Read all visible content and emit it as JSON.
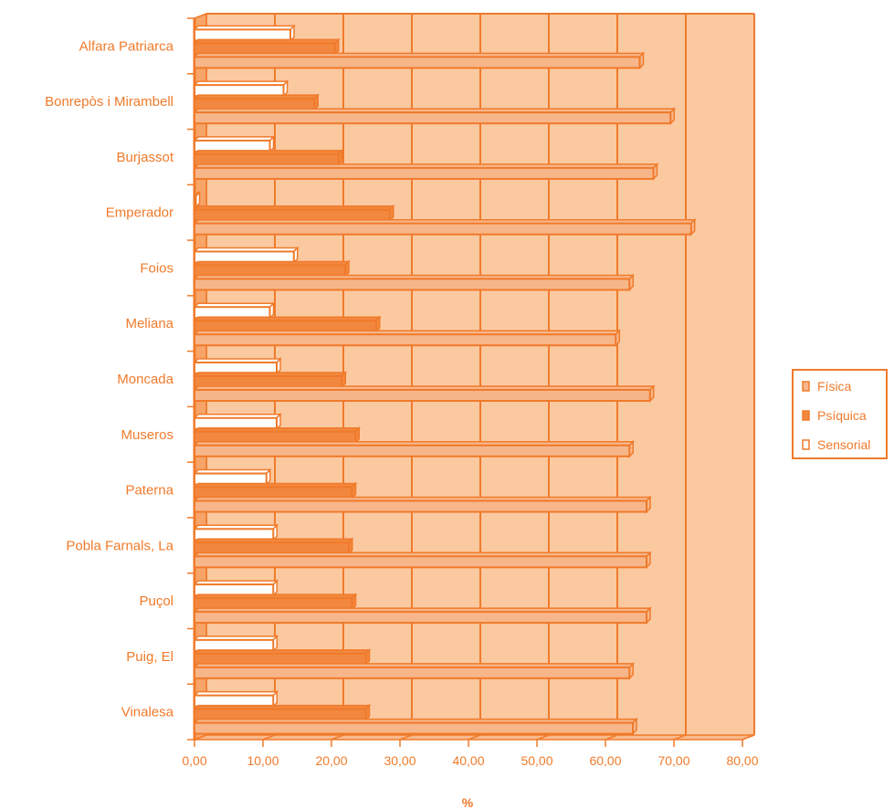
{
  "chart_data": {
    "type": "bar",
    "orientation": "horizontal",
    "title": "",
    "xlabel": "%",
    "ylabel": "",
    "xlim": [
      0,
      80
    ],
    "x_ticks": [
      "0,00",
      "10,00",
      "20,00",
      "30,00",
      "40,00",
      "50,00",
      "60,00",
      "70,00",
      "80,00"
    ],
    "grid": true,
    "legend_position": "right",
    "categories": [
      "Alfara Patriarca",
      "Bonrepòs i Mirambell",
      "Burjassot",
      "Emperador",
      "Foios",
      "Meliana",
      "Moncada",
      "Museros",
      "Paterna",
      "Pobla Farnals, La",
      "Puçol",
      "Puig, El",
      "Vinalesa"
    ],
    "series": [
      {
        "name": "Sensorial",
        "values": [
          14,
          13,
          11,
          0,
          14.5,
          11,
          12,
          12,
          10.5,
          11.5,
          11.5,
          11.5,
          11.5
        ]
      },
      {
        "name": "Psíquica",
        "values": [
          20.5,
          17.5,
          21,
          28.5,
          22,
          26.5,
          21.5,
          23.5,
          23,
          22.5,
          23,
          25,
          25
        ]
      },
      {
        "name": "Física",
        "values": [
          65,
          69.5,
          67,
          72.5,
          63.5,
          61.5,
          66.5,
          63.5,
          66,
          66,
          66,
          63.5,
          64
        ]
      }
    ],
    "legend_entries": [
      "Física",
      "Psíquica",
      "Sensorial"
    ]
  },
  "colors": {
    "accent": "#f07a2a",
    "plot_background": "#fbc9a0",
    "fisica_fill": "#f7b68a",
    "psiquica_fill": "#f2883f",
    "sensorial_fill": "#ffffff"
  }
}
